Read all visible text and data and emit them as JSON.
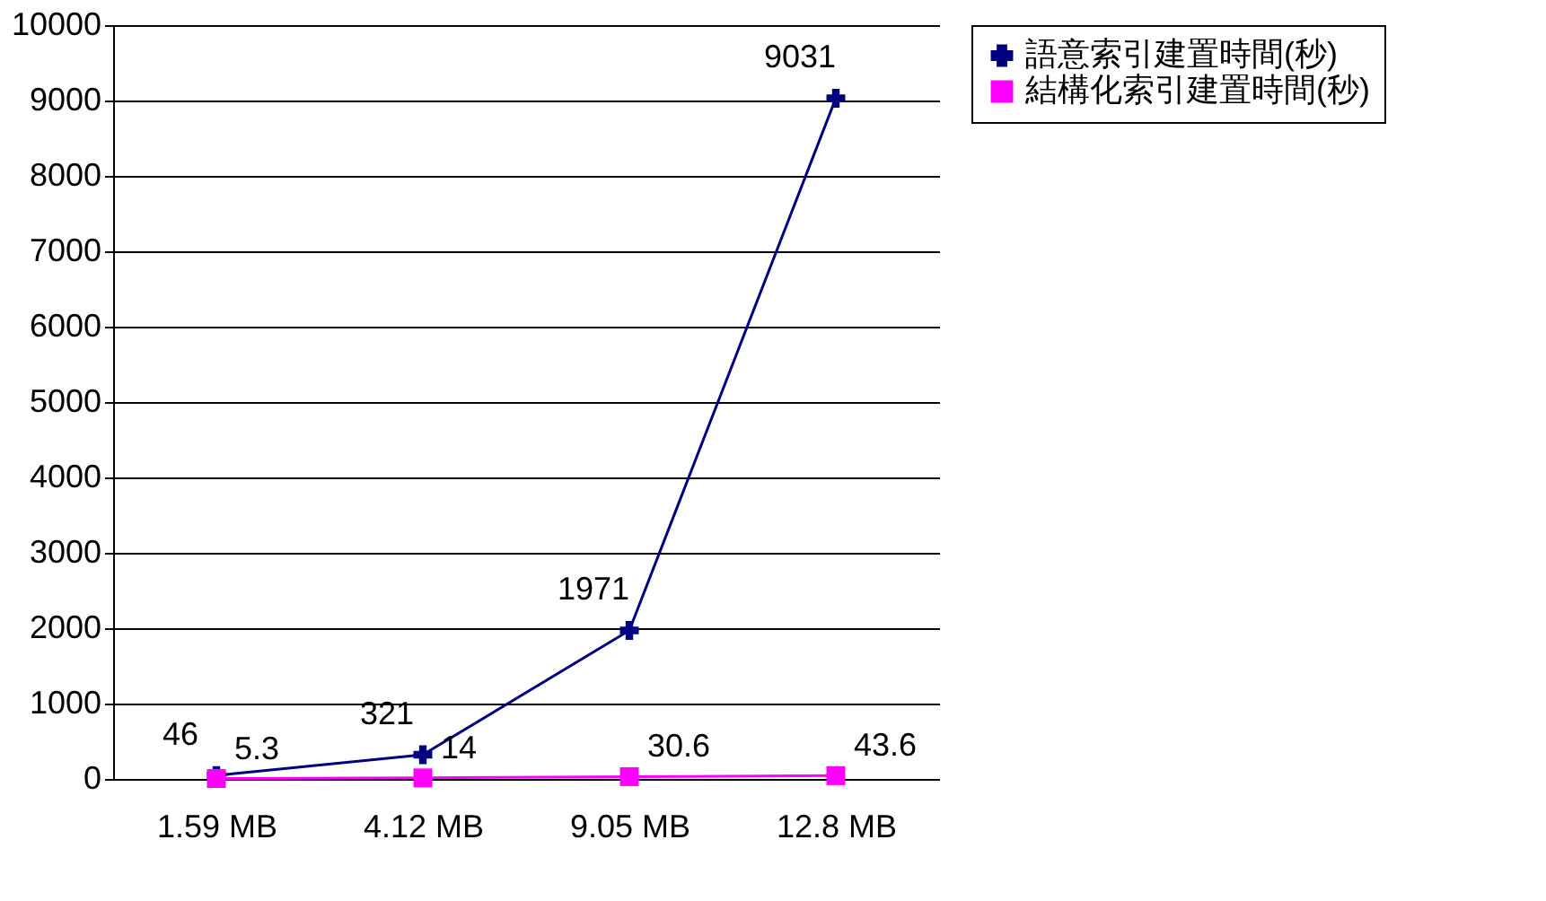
{
  "chart_data": {
    "type": "line",
    "categories": [
      "1.59 MB",
      "4.12 MB",
      "9.05 MB",
      "12.8 MB"
    ],
    "series": [
      {
        "name": "語意索引建置時間(秒)",
        "color": "#000080",
        "values": [
          46,
          321,
          1971,
          9031
        ],
        "marker": "cross"
      },
      {
        "name": "結構化索引建置時間(秒)",
        "color": "#ff00ff",
        "values": [
          5.3,
          14,
          30.6,
          43.6
        ],
        "marker": "square"
      }
    ],
    "ylim": [
      0,
      10000
    ],
    "yticks": [
      0,
      1000,
      2000,
      3000,
      4000,
      5000,
      6000,
      7000,
      8000,
      9000,
      10000
    ],
    "grid": "y",
    "legend": "right",
    "data_labels": true,
    "line_style": "solid"
  }
}
